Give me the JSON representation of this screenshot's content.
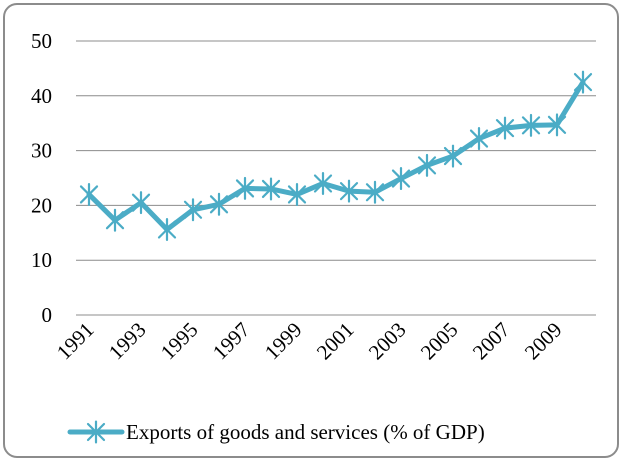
{
  "chart_data": {
    "type": "line",
    "title": "",
    "xlabel": "",
    "ylabel": "",
    "ylim": [
      0,
      50
    ],
    "yticks": [
      0,
      10,
      20,
      30,
      40,
      50
    ],
    "x": [
      1991,
      1992,
      1993,
      1994,
      1995,
      1996,
      1997,
      1998,
      1999,
      2000,
      2001,
      2002,
      2003,
      2004,
      2005,
      2006,
      2007,
      2008,
      2009,
      2010
    ],
    "xtick_labels": [
      "1991",
      "1993",
      "1995",
      "1997",
      "1999",
      "2001",
      "2003",
      "2005",
      "2007",
      "2009"
    ],
    "grid": "horizontal",
    "legend_position": "bottom",
    "series": [
      {
        "name": "Exports of goods and services (% of GDP)",
        "color": "#4bacc6",
        "marker": "asterisk",
        "values": [
          22.0,
          17.3,
          20.5,
          15.6,
          19.2,
          20.2,
          23.1,
          23.0,
          22.0,
          24.0,
          22.6,
          22.4,
          24.9,
          27.3,
          29.0,
          32.2,
          34.1,
          34.6,
          34.7,
          42.5
        ]
      }
    ]
  }
}
